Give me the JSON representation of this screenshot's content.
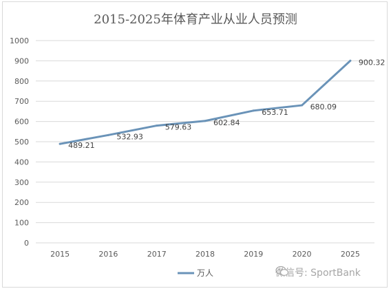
{
  "chart_data": {
    "type": "line",
    "title": "2015-2025年体育产业从业人员预测",
    "categories": [
      "2015",
      "2016",
      "2017",
      "2018",
      "2019",
      "2020",
      "2025"
    ],
    "series": [
      {
        "name": "万人",
        "values": [
          489.21,
          532.93,
          579.63,
          602.84,
          653.71,
          680.09,
          900.32
        ],
        "labels": [
          "489.21",
          "532.93",
          "579.63",
          "602.84",
          "653.71",
          "680.09",
          "900.32"
        ]
      }
    ],
    "ylim": [
      0,
      1000
    ],
    "yticks": [
      "0",
      "100",
      "200",
      "300",
      "400",
      "500",
      "600",
      "700",
      "800",
      "900",
      "1000"
    ],
    "grid": true,
    "legend": "bottom",
    "colors": {
      "line": "#6a93b8",
      "grid": "#d9d9d9",
      "text": "#595959"
    }
  },
  "watermark": {
    "text": "微信号: SportBank",
    "icon": "wechat-icon"
  }
}
